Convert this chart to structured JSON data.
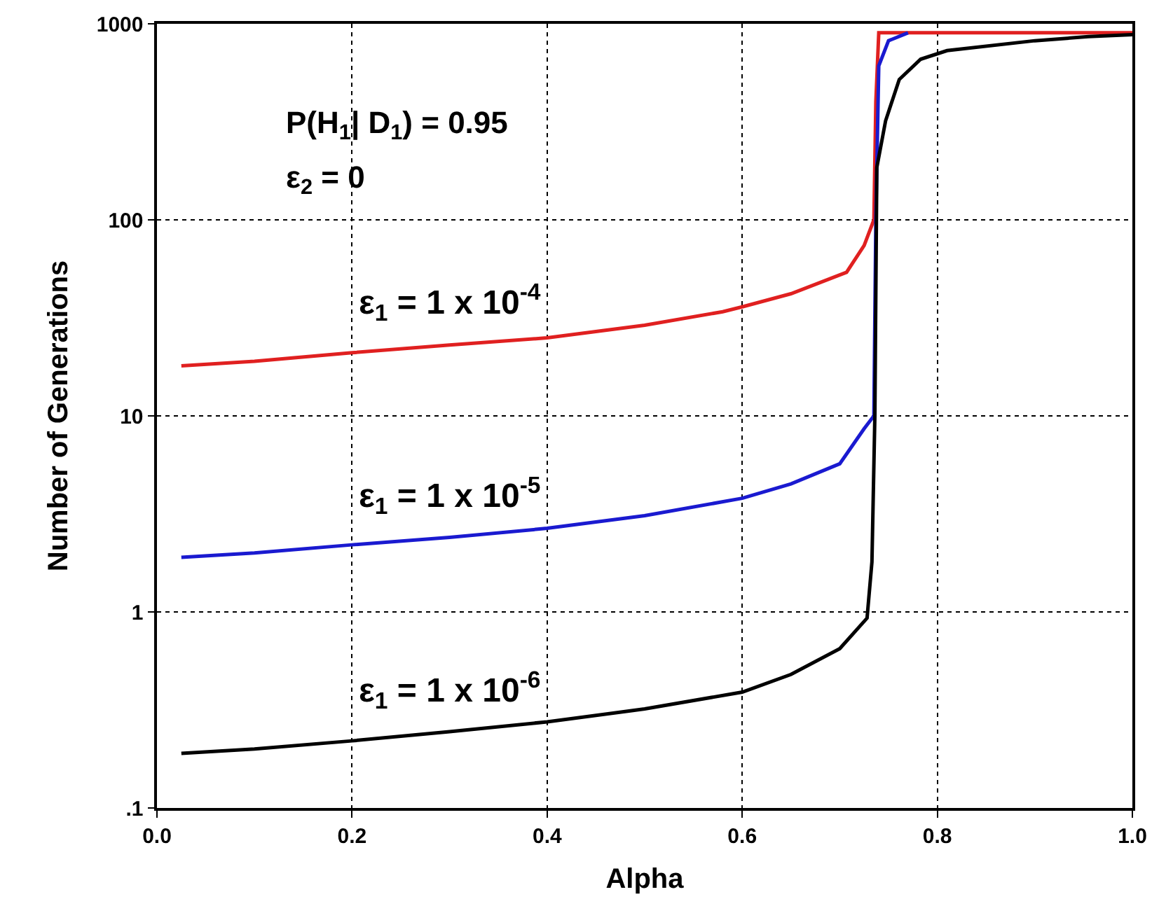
{
  "chart_data": {
    "type": "line",
    "xlabel": "Alpha",
    "ylabel": "Number of Generations",
    "log": "y",
    "grid": true,
    "xlim": [
      0,
      1
    ],
    "ylim": [
      0.1,
      1000
    ],
    "xticks": [
      {
        "value": 0,
        "label": "0.0"
      },
      0.2,
      0.4,
      0.6,
      0.8,
      {
        "value": 1,
        "label": "1.0"
      }
    ],
    "yticks": [
      {
        "value": 0.1,
        "label": ".1"
      },
      1,
      10,
      100,
      1000
    ],
    "annotations": [
      "P(H$_{1}$| D$_{1}$) = 0.95",
      "ε$_{2}$ = 0"
    ],
    "series": [
      {
        "name": "ε$_{1}$ = 1 x 10$^{-4}$",
        "color": "#e02020",
        "x": [
          0.025,
          0.1,
          0.2,
          0.3,
          0.4,
          0.5,
          0.58,
          0.6,
          0.65,
          0.707,
          0.725,
          0.735,
          0.737,
          0.74,
          1.0
        ],
        "values": [
          18,
          19,
          21,
          23,
          25,
          29,
          34,
          36,
          42,
          54,
          74,
          100,
          400,
          900,
          900
        ]
      },
      {
        "name": "ε$_{1}$ = 1 x 10$^{-5}$",
        "color": "#1a1ad0",
        "x": [
          0.025,
          0.1,
          0.2,
          0.3,
          0.4,
          0.5,
          0.6,
          0.65,
          0.7,
          0.725,
          0.735,
          0.737,
          0.74,
          0.75,
          0.77
        ],
        "values": [
          1.9,
          2.0,
          2.2,
          2.4,
          2.67,
          3.1,
          3.8,
          4.5,
          5.7,
          8.6,
          10,
          100,
          610,
          820,
          900
        ]
      },
      {
        "name": "ε$_{1}$ = 1 x 10$^{-6}$",
        "color": "#000000",
        "x": [
          0.025,
          0.1,
          0.2,
          0.3,
          0.4,
          0.5,
          0.6,
          0.65,
          0.7,
          0.728,
          0.733,
          0.736,
          0.738,
          0.747,
          0.761,
          0.783,
          0.81,
          0.9,
          0.955,
          1.0
        ],
        "values": [
          0.19,
          0.2,
          0.22,
          0.245,
          0.275,
          0.32,
          0.39,
          0.48,
          0.65,
          0.93,
          1.8,
          10,
          185,
          320,
          520,
          660,
          730,
          820,
          860,
          880
        ]
      }
    ]
  }
}
